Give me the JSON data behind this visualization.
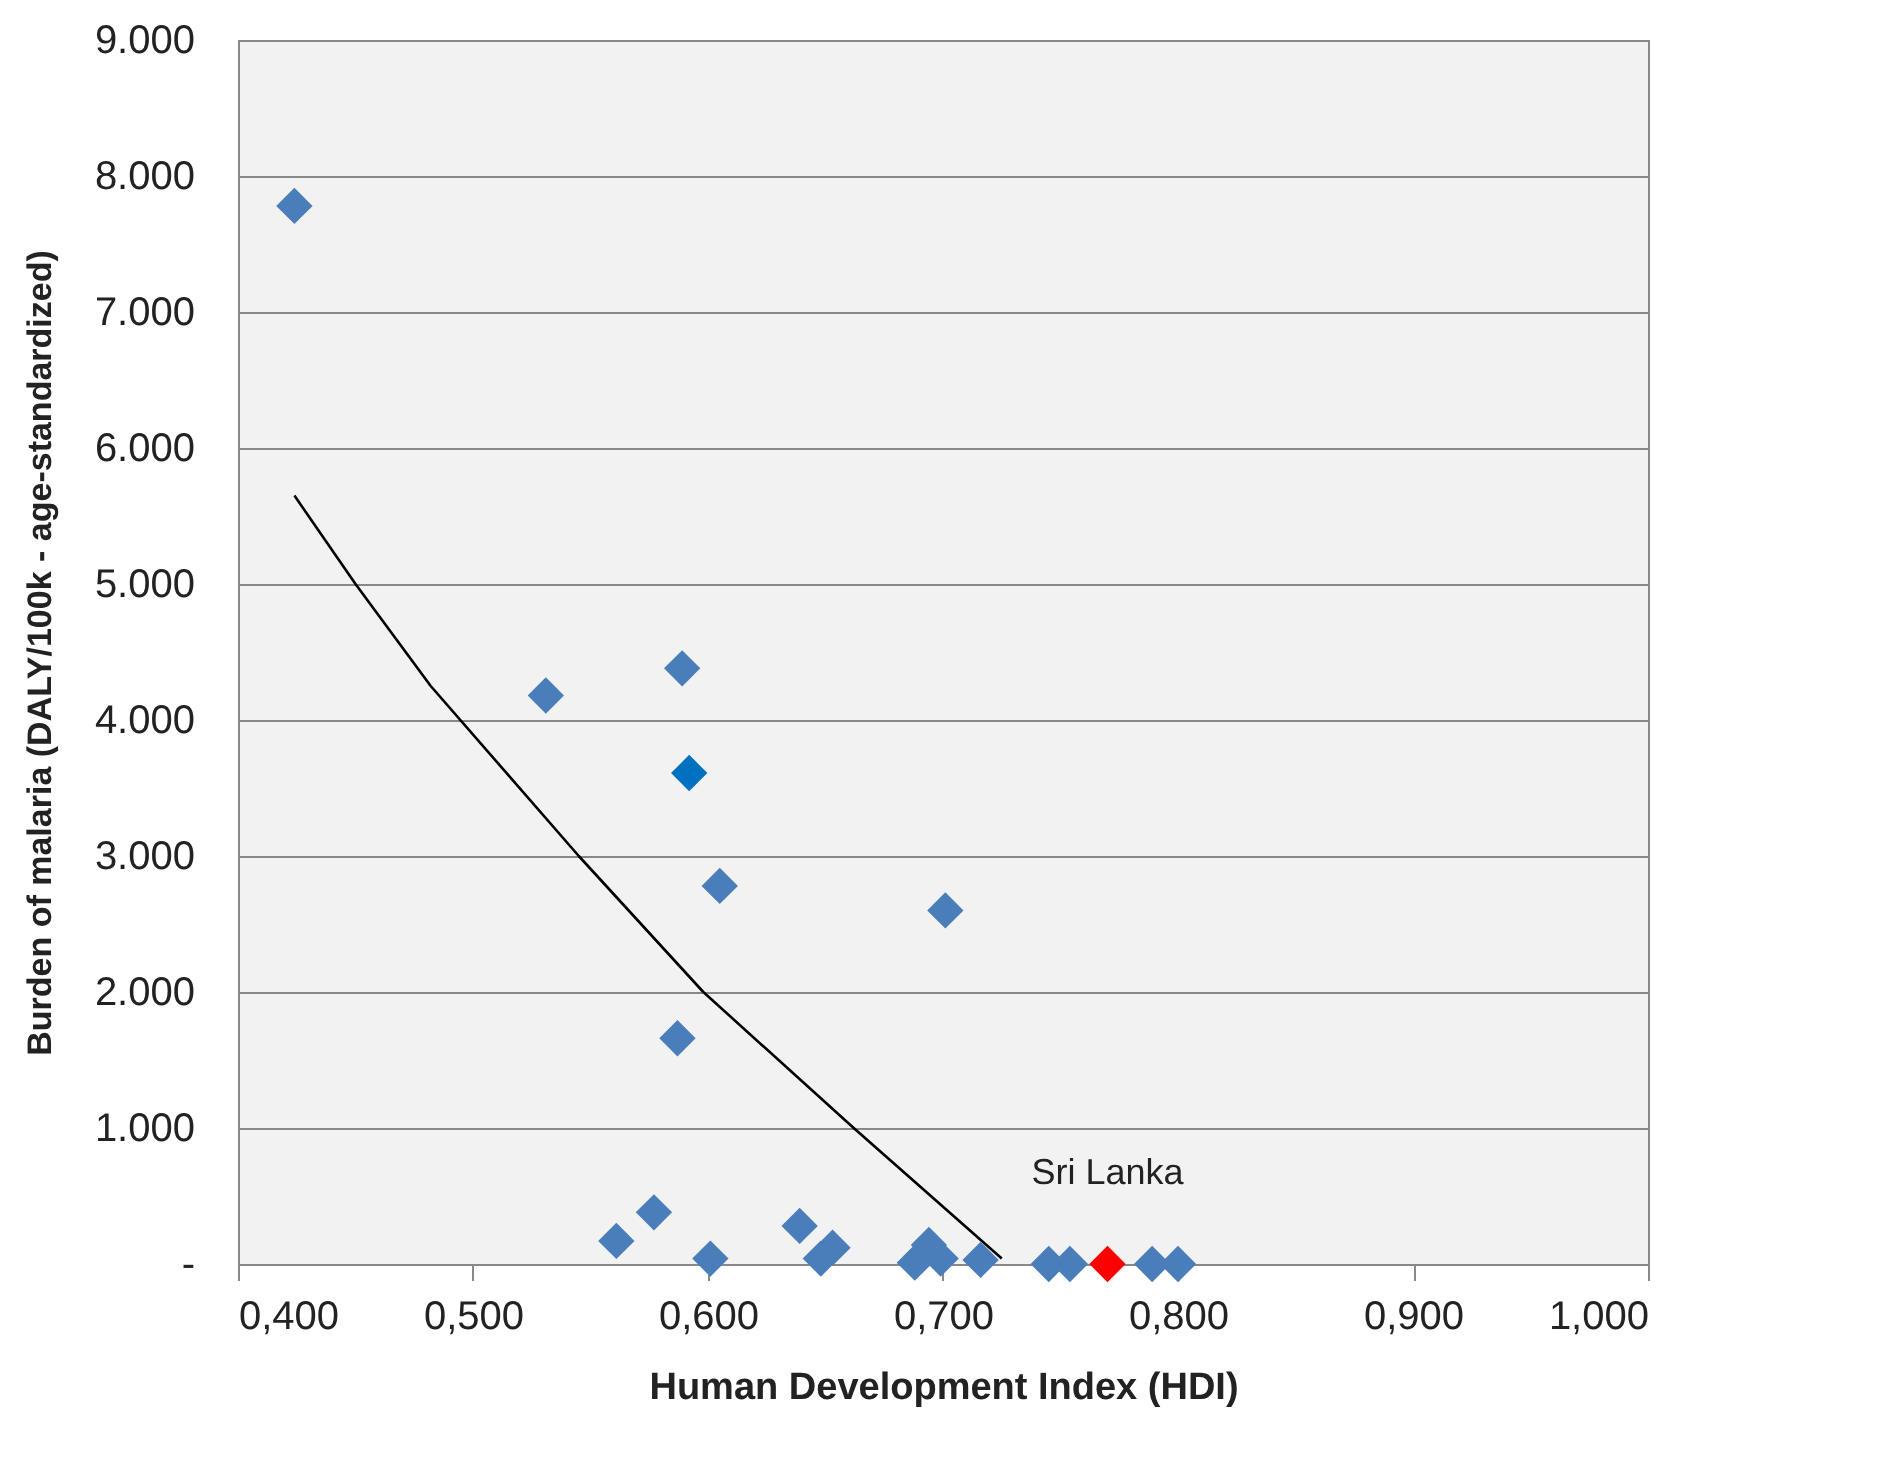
{
  "chart_data": {
    "type": "scatter",
    "xlabel": "Human Development Index (HDI)",
    "ylabel": "Burden of malaria (DALY/100k - age-standardized)",
    "series": [
      {
        "color": "#4a7ebb",
        "x": [
          0.424,
          0.531,
          0.589,
          0.605,
          0.701,
          0.587,
          0.577,
          0.561,
          0.601,
          0.639,
          0.648,
          0.653,
          0.688,
          0.694,
          0.699,
          0.716,
          0.745,
          0.754,
          0.789,
          0.8
        ],
        "values": [
          7780,
          4180,
          4380,
          2780,
          2600,
          1660,
          380,
          170,
          40,
          280,
          40,
          120,
          10,
          140,
          40,
          30,
          0,
          0,
          0,
          0
        ]
      },
      {
        "color": "#0070c0",
        "x": [
          0.592
        ],
        "values": [
          3610
        ]
      },
      {
        "color": "#ff0000",
        "x": [
          0.77
        ],
        "values": [
          0
        ]
      },
      {
        "type": "line",
        "marker": "none",
        "color": "#000000",
        "x": [
          0.424,
          0.45,
          0.482,
          0.545,
          0.598,
          0.662,
          0.725
        ],
        "values": [
          5650,
          5000,
          4250,
          3000,
          2000,
          1000,
          40
        ]
      }
    ],
    "annotations": [
      {
        "text": "Sri Lanka",
        "x": 0.77,
        "y": 0
      }
    ],
    "xlim": [
      0.4,
      1.0
    ],
    "xticks": [
      {
        "value": 0.4,
        "label": "0,400"
      },
      {
        "value": 0.5,
        "label": "0,500"
      },
      {
        "value": 0.6,
        "label": "0,600"
      },
      {
        "value": 0.7,
        "label": "0,700"
      },
      {
        "value": 0.8,
        "label": "0,800"
      },
      {
        "value": 0.9,
        "label": "0,900"
      },
      {
        "value": 1.0,
        "label": "1,000"
      }
    ],
    "ylim": [
      0,
      9000
    ],
    "yticks": [
      {
        "value": 0,
        "label": "-"
      },
      {
        "value": 1000,
        "label": "1.000"
      },
      {
        "value": 2000,
        "label": "2.000"
      },
      {
        "value": 3000,
        "label": "3.000"
      },
      {
        "value": 4000,
        "label": "4.000"
      },
      {
        "value": 5000,
        "label": "5.000"
      },
      {
        "value": 6000,
        "label": "6.000"
      },
      {
        "value": 7000,
        "label": "7.000"
      },
      {
        "value": 8000,
        "label": "8.000"
      },
      {
        "value": 9000,
        "label": "9.000"
      }
    ],
    "grid": "y",
    "marker": "diamond"
  }
}
